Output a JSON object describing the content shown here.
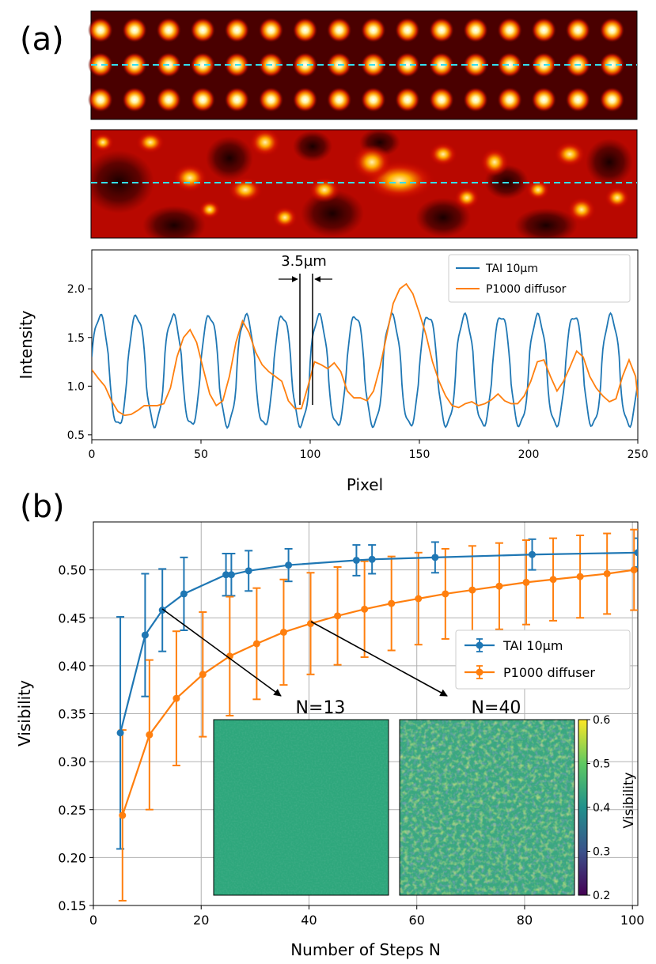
{
  "panel_a": {
    "label": "(a)",
    "annotation": "3.5µm"
  },
  "panel_b": {
    "label": "(b)",
    "inset_labels": [
      "N=13",
      "N=40"
    ],
    "colorbar": {
      "label": "Visibility",
      "ticks": [
        "0.2",
        "0.3",
        "0.4",
        "0.5",
        "0.6"
      ],
      "range": [
        0.2,
        0.6
      ],
      "colormap": "viridis"
    }
  },
  "chart_data": [
    {
      "type": "line",
      "xlabel": "Pixel",
      "ylabel": "Intensity",
      "xlim": [
        0,
        250
      ],
      "ylim": [
        0.45,
        2.4
      ],
      "xticks": [
        "0",
        "50",
        "100",
        "150",
        "200",
        "250"
      ],
      "yticks": [
        "0.5",
        "1.0",
        "1.5",
        "2.0"
      ],
      "legend_position": "top-right",
      "series": [
        {
          "name": "TAI 10µm",
          "color": "#1f77b4",
          "period": 16.7,
          "min": 0.6,
          "max": 1.72
        },
        {
          "name": "P1000 diffusor",
          "color": "#ff7f0e",
          "points": [
            [
              0,
              1.17
            ],
            [
              3,
              1.08
            ],
            [
              6,
              1.0
            ],
            [
              9,
              0.85
            ],
            [
              12,
              0.74
            ],
            [
              15,
              0.7
            ],
            [
              18,
              0.71
            ],
            [
              21,
              0.75
            ],
            [
              24,
              0.8
            ],
            [
              27,
              0.8
            ],
            [
              30,
              0.8
            ],
            [
              33,
              0.82
            ],
            [
              36,
              0.98
            ],
            [
              39,
              1.3
            ],
            [
              42,
              1.5
            ],
            [
              45,
              1.58
            ],
            [
              48,
              1.45
            ],
            [
              51,
              1.18
            ],
            [
              54,
              0.92
            ],
            [
              57,
              0.8
            ],
            [
              60,
              0.85
            ],
            [
              63,
              1.1
            ],
            [
              66,
              1.45
            ],
            [
              69,
              1.67
            ],
            [
              72,
              1.55
            ],
            [
              75,
              1.35
            ],
            [
              78,
              1.22
            ],
            [
              81,
              1.15
            ],
            [
              84,
              1.1
            ],
            [
              87,
              1.05
            ],
            [
              90,
              0.85
            ],
            [
              93,
              0.77
            ],
            [
              96,
              0.77
            ],
            [
              99,
              1.0
            ],
            [
              102,
              1.25
            ],
            [
              105,
              1.22
            ],
            [
              108,
              1.18
            ],
            [
              111,
              1.24
            ],
            [
              114,
              1.15
            ],
            [
              117,
              0.95
            ],
            [
              120,
              0.88
            ],
            [
              123,
              0.88
            ],
            [
              126,
              0.85
            ],
            [
              129,
              0.95
            ],
            [
              132,
              1.2
            ],
            [
              135,
              1.52
            ],
            [
              138,
              1.85
            ],
            [
              141,
              2.0
            ],
            [
              144,
              2.05
            ],
            [
              147,
              1.95
            ],
            [
              150,
              1.75
            ],
            [
              153,
              1.53
            ],
            [
              156,
              1.25
            ],
            [
              159,
              1.05
            ],
            [
              162,
              0.9
            ],
            [
              165,
              0.8
            ],
            [
              168,
              0.78
            ],
            [
              171,
              0.82
            ],
            [
              174,
              0.84
            ],
            [
              177,
              0.8
            ],
            [
              180,
              0.82
            ],
            [
              183,
              0.86
            ],
            [
              186,
              0.92
            ],
            [
              189,
              0.85
            ],
            [
              192,
              0.82
            ],
            [
              195,
              0.82
            ],
            [
              198,
              0.9
            ],
            [
              201,
              1.05
            ],
            [
              204,
              1.25
            ],
            [
              207,
              1.27
            ],
            [
              210,
              1.1
            ],
            [
              213,
              0.95
            ],
            [
              216,
              1.05
            ],
            [
              219,
              1.2
            ],
            [
              222,
              1.36
            ],
            [
              225,
              1.3
            ],
            [
              228,
              1.1
            ],
            [
              231,
              0.98
            ],
            [
              234,
              0.9
            ],
            [
              237,
              0.84
            ],
            [
              240,
              0.87
            ],
            [
              243,
              1.1
            ],
            [
              246,
              1.27
            ],
            [
              249,
              1.1
            ],
            [
              250,
              0.88
            ]
          ]
        }
      ]
    },
    {
      "type": "line",
      "xlabel": "Number of Steps N",
      "ylabel": "Visibility",
      "xlim": [
        0,
        101
      ],
      "ylim": [
        0.15,
        0.55
      ],
      "xticks": [
        "0",
        "20",
        "40",
        "60",
        "80",
        "100"
      ],
      "yticks": [
        "0.15",
        "0.20",
        "0.25",
        "0.30",
        "0.35",
        "0.40",
        "0.45",
        "0.50"
      ],
      "grid": true,
      "legend_position": "center-right",
      "series": [
        {
          "name": "TAI 10µm",
          "color": "#1f77b4",
          "x": [
            5,
            9.6,
            12.8,
            16.8,
            24.6,
            25.6,
            28.8,
            36.2,
            48.8,
            51.7,
            63.4,
            81.4,
            101
          ],
          "y": [
            0.33,
            0.432,
            0.458,
            0.475,
            0.495,
            0.495,
            0.499,
            0.505,
            0.51,
            0.511,
            0.513,
            0.516,
            0.518
          ],
          "err": [
            0.121,
            0.064,
            0.043,
            0.038,
            0.022,
            0.022,
            0.021,
            0.017,
            0.016,
            0.015,
            0.016,
            0.016,
            0.015
          ]
        },
        {
          "name": "P1000 diffuser",
          "color": "#ff7f0e",
          "x": [
            5.4,
            10.4,
            15.4,
            20.3,
            25.3,
            30.3,
            35.3,
            40.3,
            45.3,
            50.3,
            55.3,
            60.3,
            65.3,
            70.3,
            75.3,
            80.3,
            85.3,
            90.3,
            95.3,
            100.3
          ],
          "y": [
            0.244,
            0.328,
            0.366,
            0.391,
            0.41,
            0.423,
            0.435,
            0.444,
            0.452,
            0.459,
            0.465,
            0.47,
            0.475,
            0.479,
            0.483,
            0.487,
            0.49,
            0.493,
            0.496,
            0.5
          ],
          "err": [
            0.089,
            0.078,
            0.07,
            0.065,
            0.062,
            0.058,
            0.055,
            0.053,
            0.051,
            0.05,
            0.049,
            0.048,
            0.047,
            0.046,
            0.045,
            0.044,
            0.043,
            0.043,
            0.042,
            0.042
          ]
        }
      ]
    }
  ]
}
